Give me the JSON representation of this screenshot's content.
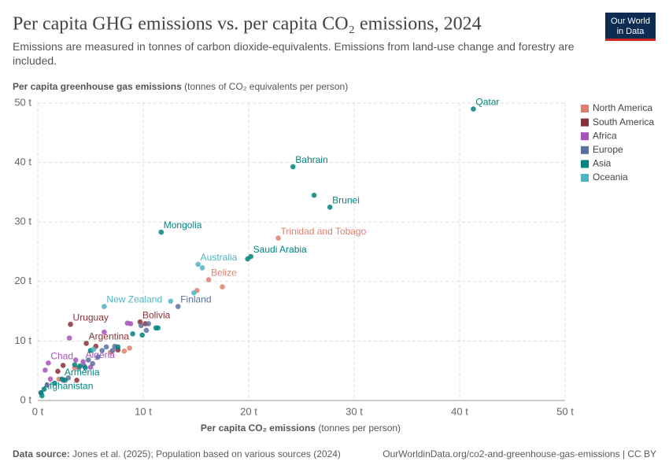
{
  "chart_data": {
    "type": "scatter",
    "title": "Per capita GHG emissions vs. per capita CO₂ emissions, 2024",
    "subtitle": "Emissions are measured in tonnes of carbon dioxide-equivalents. Emissions from land-use change and forestry are included.",
    "y_label": "Per capita greenhouse gas emissions",
    "y_label_unit": "(tonnes of CO₂ equivalents per person)",
    "x_label": "Per capita CO₂ emissions",
    "x_label_unit": "(tonnes per person)",
    "logo": [
      "Our World",
      "in Data"
    ],
    "source_label": "Data source:",
    "source": "Jones et al. (2025); Population based on various sources (2024)",
    "url": "OurWorldinData.org/co2-and-greenhouse-gas-emissions | CC BY",
    "xlim": [
      0,
      50
    ],
    "ylim": [
      0,
      50
    ],
    "xticks": [
      {
        "value": 0,
        "label": "0 t"
      },
      {
        "value": 10,
        "label": "10 t"
      },
      {
        "value": 20,
        "label": "20 t"
      },
      {
        "value": 30,
        "label": "30 t"
      },
      {
        "value": 40,
        "label": "40 t"
      },
      {
        "value": 50,
        "label": "50 t"
      }
    ],
    "yticks": [
      {
        "value": 0,
        "label": "0 t"
      },
      {
        "value": 10,
        "label": "10 t"
      },
      {
        "value": 20,
        "label": "20 t"
      },
      {
        "value": 30,
        "label": "30 t"
      },
      {
        "value": 40,
        "label": "40 t"
      },
      {
        "value": 50,
        "label": "50 t"
      }
    ],
    "grid": true,
    "legend": "right",
    "series": [
      {
        "name": "North America",
        "color": "#e07f6d",
        "x": [
          22.8,
          16.2,
          17.5,
          8.7,
          8.2,
          6.9,
          15.1,
          3.5,
          2.0
        ],
        "values": [
          27.3,
          20.3,
          19.1,
          8.8,
          8.3,
          8.1,
          18.5,
          5.5,
          3.6
        ],
        "labels": [
          "Trinidad and Tobago",
          "Belize",
          null,
          null,
          null,
          null,
          null,
          null,
          null
        ]
      },
      {
        "name": "South America",
        "color": "#883039",
        "x": [
          3.1,
          9.7,
          4.6,
          10.2,
          2.4,
          5.5,
          7.6,
          1.9,
          3.7
        ],
        "values": [
          12.8,
          13.2,
          9.6,
          12.9,
          5.9,
          9.1,
          8.5,
          4.9,
          3.4
        ],
        "labels": [
          "Uruguay",
          "Bolivia",
          "Argentina",
          null,
          null,
          null,
          null,
          null,
          null
        ]
      },
      {
        "name": "Africa",
        "color": "#a652ba",
        "x": [
          1.0,
          4.3,
          8.5,
          8.8,
          3.0,
          0.7,
          3.6,
          6.3,
          1.2,
          2.4,
          0.3,
          5.0,
          0.9
        ],
        "values": [
          6.3,
          6.5,
          13.0,
          12.9,
          10.5,
          5.1,
          6.8,
          11.5,
          3.6,
          3.4,
          1.3,
          5.6,
          2.6
        ],
        "labels": [
          "Chad",
          "Algeria",
          null,
          null,
          null,
          null,
          null,
          null,
          null,
          null,
          null,
          null,
          null
        ]
      },
      {
        "name": "Europe",
        "color": "#5b6fa0",
        "x": [
          13.3,
          10.5,
          6.5,
          5.2,
          4.4,
          7.3,
          3.9,
          6.1,
          2.9,
          4.8,
          10.3,
          9.8,
          5.7,
          7.1
        ],
        "values": [
          15.8,
          12.9,
          9.0,
          6.2,
          5.8,
          9.1,
          5.5,
          8.4,
          3.8,
          6.8,
          11.8,
          12.6,
          7.3,
          8.4
        ],
        "labels": [
          "Finland",
          null,
          null,
          null,
          null,
          null,
          null,
          null,
          null,
          null,
          null,
          null,
          null,
          null
        ]
      },
      {
        "name": "Asia",
        "color": "#00847e",
        "x": [
          41.3,
          24.2,
          27.7,
          26.2,
          11.7,
          20.2,
          19.9,
          2.3,
          0.3,
          11.2,
          9.0,
          9.9,
          4.0,
          3.5,
          4.5,
          1.6,
          0.4,
          7.6,
          5.0,
          2.6,
          11.4,
          0.6
        ],
        "values": [
          49.0,
          39.3,
          32.5,
          34.5,
          28.3,
          24.2,
          23.8,
          3.6,
          1.3,
          12.2,
          11.2,
          11.0,
          5.8,
          6.0,
          5.5,
          2.9,
          0.8,
          9.0,
          8.4,
          3.4,
          12.2,
          1.9
        ],
        "labels": [
          "Qatar",
          "Bahrain",
          "Brunei",
          null,
          "Mongolia",
          "Saudi Arabia",
          null,
          "Armenia",
          "Afghanistan",
          null,
          null,
          null,
          null,
          null,
          null,
          null,
          null,
          null,
          null,
          null,
          null,
          null
        ]
      },
      {
        "name": "Oceania",
        "color": "#4cb4c4",
        "x": [
          15.2,
          15.6,
          6.3,
          12.6,
          14.8,
          5.3
        ],
        "values": [
          22.9,
          22.3,
          15.8,
          16.7,
          18.1,
          8.6
        ],
        "labels": [
          "Australia",
          null,
          "New Zealand",
          null,
          null,
          null
        ]
      }
    ]
  }
}
